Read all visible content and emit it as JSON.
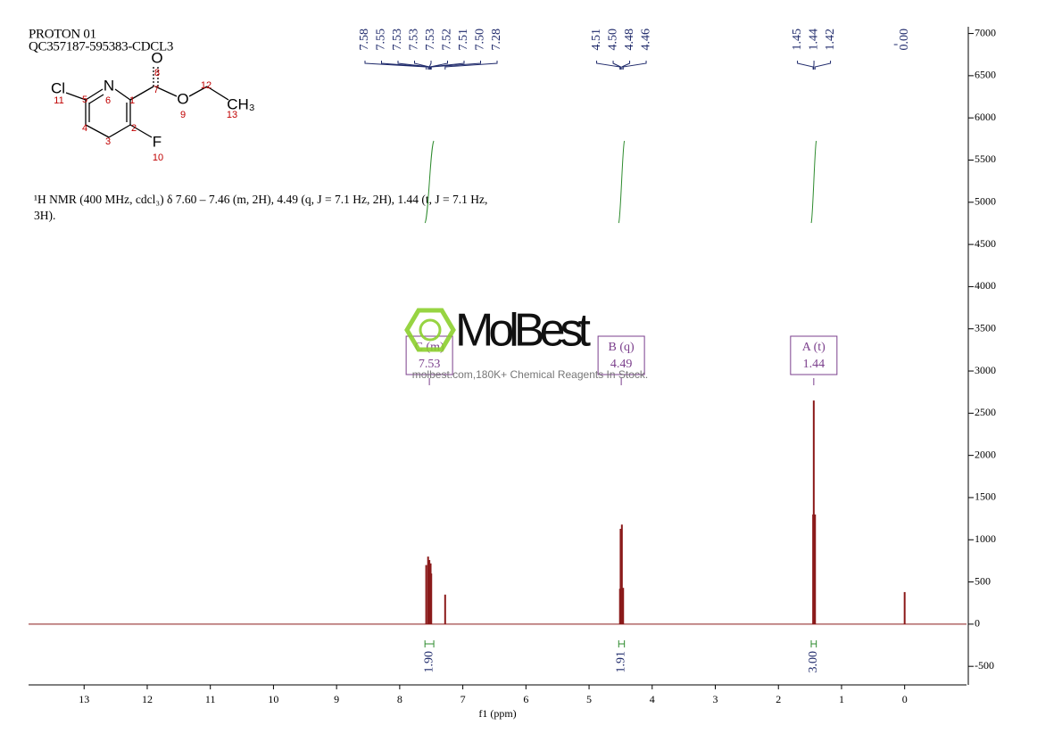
{
  "header": {
    "lines": [
      "PROTON 01",
      "QC357187-595383-CDCL3"
    ]
  },
  "molecule": {
    "atoms": [
      "Cl",
      "N",
      "O",
      "O",
      "CH₃",
      "F"
    ],
    "locants": [
      1,
      2,
      3,
      4,
      5,
      6,
      7,
      8,
      9,
      10,
      11,
      12,
      13
    ]
  },
  "description": {
    "lines": [
      "¹H NMR (400 MHz, cdcl₃) δ 7.60 – 7.46 (m, 2H), 4.49 (q, J = 7.1 Hz, 2H), 1.44 (t, J = 7.1 Hz,",
      "3H)."
    ]
  },
  "watermark": {
    "brand": "MolBest",
    "slogan": "molbest.com,180K+ Chemical Reagents In Stock."
  },
  "chart_data": {
    "type": "nmr",
    "xlabel": "f1 (ppm)",
    "xlim": [
      13.88,
      -0.98
    ],
    "xticks": [
      13,
      12,
      11,
      10,
      9,
      8,
      7,
      6,
      5,
      4,
      3,
      2,
      1,
      0
    ],
    "ylim": [
      -720,
      7080
    ],
    "yticks": [
      -500,
      0,
      500,
      1000,
      1500,
      2000,
      2500,
      3000,
      3500,
      4000,
      4500,
      5000,
      5500,
      6000,
      6500,
      7000
    ],
    "color": "#8b1a1a",
    "x": [
      7.58,
      7.55,
      7.53,
      7.52,
      7.51,
      7.5,
      7.28,
      4.51,
      4.5,
      4.48,
      4.46,
      1.45,
      1.44,
      1.42,
      0.0
    ],
    "values": [
      700,
      800,
      760,
      650,
      720,
      600,
      350,
      420,
      1130,
      1180,
      430,
      1300,
      2650,
      1300,
      380
    ],
    "peak_labels": [
      [
        7.58,
        7.55,
        7.53,
        7.53,
        7.53,
        7.52,
        7.51,
        {
          "value": 7.5,
          "label": "7.50"
        },
        7.28
      ],
      [
        4.51,
        {
          "value": 4.5,
          "label": "4.50"
        },
        4.48,
        4.46
      ],
      [
        1.45,
        1.44,
        1.42
      ],
      [
        {
          "value": 0,
          "label": "0.00"
        }
      ]
    ],
    "multiplets": [
      {
        "name": "C (m)",
        "shift": 7.53
      },
      {
        "name": "B (q)",
        "shift": 4.49
      },
      {
        "name": "A (t)",
        "shift": 1.44
      }
    ],
    "integrals": {
      "ranges": [
        [
          7.6,
          7.46
        ],
        [
          4.53,
          4.44
        ],
        [
          1.48,
          1.4
        ]
      ],
      "values": [
        {
          "value": 1.9,
          "label": "1.90"
        },
        1.91,
        {
          "value": 3,
          "label": "3.00"
        }
      ]
    }
  }
}
